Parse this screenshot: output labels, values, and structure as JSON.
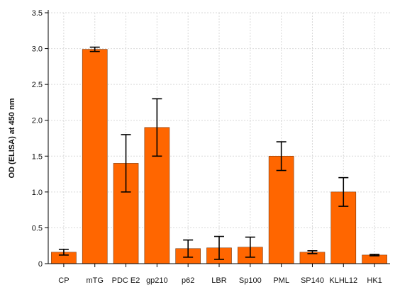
{
  "chart_data": {
    "type": "bar",
    "title": "",
    "xlabel": "",
    "ylabel": "OD (ELISA) at 450 nm",
    "ylim": [
      0,
      3.5
    ],
    "yticks": [
      0,
      0.5,
      1.0,
      1.5,
      2.0,
      2.5,
      3.0,
      3.5
    ],
    "ytick_labels": [
      "0",
      "0.5",
      "1.0",
      "1.5",
      "2.0",
      "2.5",
      "3.0",
      "3.5"
    ],
    "grid": true,
    "bar_color": "#ff6600",
    "categories": [
      "CP",
      "mTG",
      "PDC E2",
      "gp210",
      "p62",
      "LBR",
      "Sp100",
      "PML",
      "SP140",
      "KLHL12",
      "HK1"
    ],
    "values": [
      0.16,
      2.99,
      1.4,
      1.9,
      0.21,
      0.22,
      0.23,
      1.5,
      0.16,
      1.0,
      0.12
    ],
    "errors": [
      0.04,
      0.03,
      0.4,
      0.4,
      0.12,
      0.16,
      0.14,
      0.2,
      0.02,
      0.2,
      0.01
    ]
  }
}
